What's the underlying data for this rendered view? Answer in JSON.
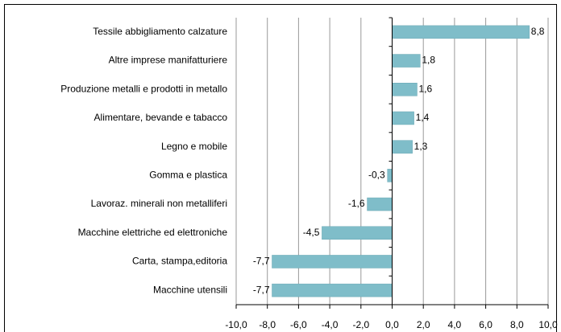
{
  "chart_data": {
    "type": "bar",
    "orientation": "horizontal",
    "categories": [
      "Tessile abbigliamento calzature",
      "Altre imprese manifatturiere",
      "Produzione metalli e prodotti in metallo",
      "Alimentare, bevande e tabacco",
      "Legno e mobile",
      "Gomma e plastica",
      "Lavoraz. minerali non metalliferi",
      "Macchine elettriche ed elettroniche",
      "Carta, stampa,editoria",
      "Macchine utensili"
    ],
    "values": [
      8.8,
      1.8,
      1.6,
      1.4,
      1.3,
      -0.3,
      -1.6,
      -4.5,
      -7.7,
      -7.7
    ],
    "value_labels": [
      "8,8",
      "1,8",
      "1,6",
      "1,4",
      "1,3",
      "-0,3",
      "-1,6",
      "-4,5",
      "-7,7",
      "-7,7"
    ],
    "color": "#7fbdc9",
    "xlim": [
      -10,
      10
    ],
    "xticks": [
      {
        "value": -10,
        "label": "-10,0"
      },
      {
        "value": -8,
        "label": "-8,0"
      },
      {
        "value": -6,
        "label": "-6,0"
      },
      {
        "value": -4,
        "label": "-4,0"
      },
      {
        "value": -2,
        "label": "-2,0"
      },
      {
        "value": 0,
        "label": "0,0"
      },
      {
        "value": 2,
        "label": "2,0"
      },
      {
        "value": 4,
        "label": "4,0"
      },
      {
        "value": 6,
        "label": "6,0"
      },
      {
        "value": 8,
        "label": "8,0"
      },
      {
        "value": 10,
        "label": "10,0"
      }
    ],
    "grid": true
  }
}
